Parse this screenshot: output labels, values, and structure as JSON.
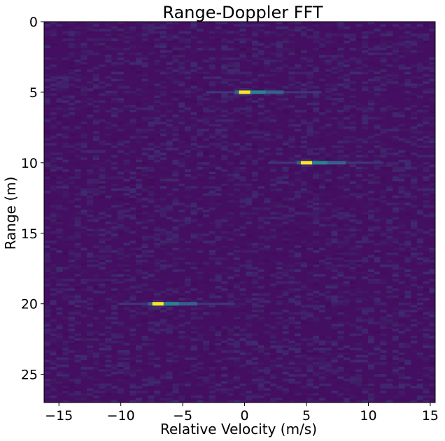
{
  "chart_data": {
    "type": "heatmap",
    "title": "Range-Doppler FFT",
    "xlabel": "Relative Velocity (m/s)",
    "ylabel": "Range (m)",
    "xlim": [
      -16.2,
      15.4
    ],
    "ylim": [
      27,
      0
    ],
    "xticks": [
      -15,
      -10,
      -5,
      0,
      5,
      10,
      15
    ],
    "yticks": [
      0,
      5,
      10,
      15,
      20,
      25
    ],
    "colormap": "viridis",
    "background_color": "#440f62",
    "targets": [
      {
        "velocity": 0,
        "range": 5,
        "peak_intensity": 1.0
      },
      {
        "velocity": 5,
        "range": 10,
        "peak_intensity": 1.0
      },
      {
        "velocity": -7,
        "range": 20,
        "peak_intensity": 1.0
      }
    ],
    "grid": false
  }
}
